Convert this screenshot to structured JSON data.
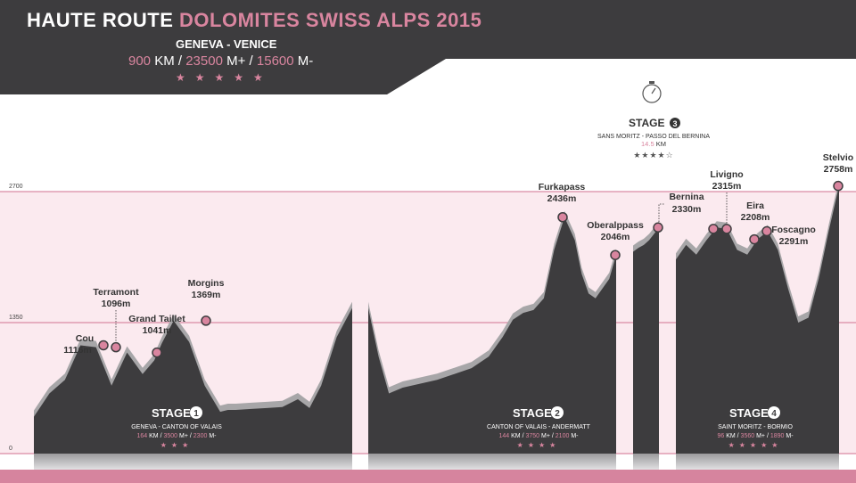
{
  "header": {
    "title_main": "HAUTE ROUTE",
    "title_accent": "DOLOMITES SWISS ALPS 2015",
    "route": "GENEVA - VENICE",
    "distance": "900",
    "distance_unit": "KM",
    "climb": "23500",
    "climb_unit": "M+",
    "descent": "15600",
    "descent_unit": "M-",
    "separator": "/",
    "stars": "★★★★★"
  },
  "colors": {
    "dark": "#3d3c3e",
    "accent": "#d9859f",
    "band": "#fbeaef",
    "shadow": "#a7a6a8"
  },
  "chart_data": {
    "type": "area",
    "title": "",
    "xlabel": "",
    "ylabel": "",
    "y_ticks": [
      {
        "label": "0",
        "value": 0
      },
      {
        "label": "1350",
        "value": 1350
      },
      {
        "label": "2700",
        "value": 2700
      }
    ],
    "ylim": [
      0,
      2700
    ],
    "grid": true,
    "stages": [
      {
        "label": "STAGE",
        "number": "1",
        "subtitle": "GENEVA - CANTON OF VALAIS",
        "km": "164",
        "km_unit": "KM",
        "climb": "3500",
        "climb_unit": "M+",
        "descent": "2300",
        "descent_unit": "M-",
        "stars": "★★★"
      },
      {
        "label": "STAGE",
        "number": "2",
        "subtitle": "CANTON OF VALAIS - ANDERMATT",
        "km": "144",
        "km_unit": "KM",
        "climb": "3750",
        "climb_unit": "M+",
        "descent": "2100",
        "descent_unit": "M-",
        "stars": "★★★★"
      },
      {
        "label": "STAGE",
        "number": "3",
        "subtitle": "SANS MORITZ - PASSO DEL BERNINA",
        "km": "14.5",
        "km_unit": "KM",
        "stars": "★★★★☆"
      },
      {
        "label": "STAGE",
        "number": "4",
        "subtitle": "SAINT MORITZ - BORMIO",
        "km": "96",
        "km_unit": "KM",
        "climb": "3560",
        "climb_unit": "M+",
        "descent": "1890",
        "descent_unit": "M-",
        "stars": "★★★★★"
      }
    ],
    "peaks": [
      {
        "name": "Cou",
        "elevation": 1116,
        "label": "1116m"
      },
      {
        "name": "Terramont",
        "elevation": 1096,
        "label": "1096m"
      },
      {
        "name": "Grand Taillet",
        "elevation": 1041,
        "label": "1041m"
      },
      {
        "name": "Morgins",
        "elevation": 1369,
        "label": "1369m"
      },
      {
        "name": "Furkapass",
        "elevation": 2436,
        "label": "2436m"
      },
      {
        "name": "Oberalppass",
        "elevation": 2046,
        "label": "2046m"
      },
      {
        "name": "Bernina",
        "elevation": 2330,
        "label": "2330m"
      },
      {
        "name": "Livigno",
        "elevation": 2315,
        "label": "2315m"
      },
      {
        "name": "Eira",
        "elevation": 2208,
        "label": "2208m"
      },
      {
        "name": "Foscagno",
        "elevation": 2291,
        "label": "2291m"
      },
      {
        "name": "Stelvio",
        "elevation": 2758,
        "label": "2758m"
      }
    ],
    "profiles": [
      {
        "stage": "1",
        "km": [
          0,
          8,
          16,
          24,
          32,
          40,
          48,
          56,
          62,
          66,
          72,
          80,
          88,
          96,
          100,
          104,
          112,
          120,
          128,
          136,
          142,
          148,
          156,
          164
        ],
        "elevation": [
          380,
          620,
          760,
          1116,
          1096,
          700,
          1041,
          820,
          960,
          1140,
          1369,
          1150,
          700,
          430,
          450,
          450,
          460,
          470,
          480,
          560,
          470,
          700,
          1200,
          1500
        ]
      },
      {
        "stage": "2",
        "km": [
          0,
          6,
          12,
          20,
          30,
          40,
          50,
          60,
          70,
          78,
          84,
          90,
          96,
          102,
          108,
          114,
          120,
          124,
          128,
          132,
          136,
          140,
          144
        ],
        "elevation": [
          1500,
          1000,
          620,
          680,
          720,
          760,
          820,
          880,
          1000,
          1200,
          1380,
          1450,
          1480,
          1600,
          2100,
          2436,
          2200,
          1850,
          1650,
          1600,
          1700,
          1800,
          2046
        ]
      },
      {
        "stage": "3",
        "km": [
          0,
          3,
          6,
          9,
          12,
          14.5
        ],
        "elevation": [
          2080,
          2120,
          2150,
          2200,
          2270,
          2330
        ]
      },
      {
        "stage": "4",
        "km": [
          0,
          6,
          12,
          18,
          24,
          30,
          36,
          42,
          48,
          54,
          60,
          66,
          72,
          78,
          84,
          90,
          96
        ],
        "elevation": [
          2000,
          2150,
          2050,
          2200,
          2330,
          2315,
          2100,
          2050,
          2208,
          2291,
          2100,
          1700,
          1350,
          1400,
          1800,
          2300,
          2758
        ]
      }
    ]
  }
}
